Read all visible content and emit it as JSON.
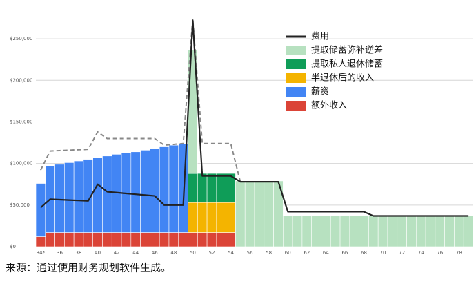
{
  "chart_data": {
    "type": "bar",
    "categories": [
      "34*",
      null,
      "36",
      null,
      "38",
      null,
      "40",
      null,
      "42",
      null,
      "44",
      null,
      "46",
      null,
      "48",
      null,
      "50",
      null,
      "52",
      null,
      "54",
      null,
      "56",
      null,
      "58",
      null,
      "60",
      null,
      "62",
      null,
      "64",
      null,
      "66",
      null,
      "68",
      null,
      "70",
      null,
      "72",
      null,
      "74",
      null,
      "76",
      null,
      "78",
      null
    ],
    "ylim": [
      0,
      275000
    ],
    "yticks": [
      {
        "value": 0,
        "label": "$0"
      },
      {
        "value": 50000,
        "label": "$50,000"
      },
      {
        "value": 100000,
        "label": "$100,000"
      },
      {
        "value": 150000,
        "label": "$150,000"
      },
      {
        "value": 200000,
        "label": "$200,000"
      },
      {
        "value": 250000,
        "label": "$250,000"
      }
    ],
    "grid": true,
    "legend": "top-right",
    "note": "来源：通过使用财务规划软件生成。",
    "series": [
      {
        "name": "费用",
        "type": "line",
        "color": "#222222",
        "values": [
          47000,
          57000,
          56500,
          56000,
          55500,
          55000,
          75000,
          66000,
          65000,
          64000,
          63000,
          62000,
          61000,
          50000,
          50000,
          50000,
          272000,
          85000,
          85000,
          85000,
          85000,
          78000,
          78000,
          78000,
          78000,
          78000,
          42000,
          42000,
          42000,
          42000,
          42000,
          42000,
          42000,
          42000,
          42000,
          37000,
          37000,
          37000,
          37000,
          37000,
          37000,
          37000,
          37000,
          37000,
          37000,
          37000
        ]
      },
      {
        "name": "提取储蓄弥补逆差",
        "type": "bar",
        "color": "#b7e1c0",
        "values": [
          null,
          null,
          null,
          null,
          null,
          null,
          null,
          null,
          null,
          null,
          null,
          null,
          null,
          null,
          null,
          null,
          149000,
          null,
          null,
          null,
          null,
          79000,
          79000,
          79000,
          79000,
          79000,
          37000,
          37000,
          37000,
          37000,
          37000,
          37000,
          37000,
          37000,
          37000,
          37000,
          37000,
          37000,
          37000,
          37000,
          37000,
          37000,
          37000,
          37000,
          37000,
          37000
        ]
      },
      {
        "name": "提取私人退休储蓄",
        "type": "bar",
        "color": "#0f9d58",
        "values": [
          null,
          null,
          null,
          null,
          null,
          null,
          null,
          null,
          null,
          null,
          null,
          null,
          null,
          null,
          null,
          null,
          35000,
          35000,
          35000,
          35000,
          35000,
          null,
          null,
          null,
          null,
          null,
          null,
          null,
          null,
          null,
          null,
          null,
          null,
          null,
          null,
          null,
          null,
          null,
          null,
          null,
          null,
          null,
          null,
          null,
          null,
          null
        ]
      },
      {
        "name": "半退休后的收入",
        "type": "bar",
        "color": "#f4b400",
        "values": [
          null,
          null,
          null,
          null,
          null,
          null,
          null,
          null,
          null,
          null,
          null,
          null,
          null,
          null,
          null,
          null,
          36000,
          36000,
          36000,
          36000,
          36000,
          null,
          null,
          null,
          null,
          null,
          null,
          null,
          null,
          null,
          null,
          null,
          null,
          null,
          null,
          null,
          null,
          null,
          null,
          null,
          null,
          null,
          null,
          null,
          null,
          null
        ]
      },
      {
        "name": "薪资",
        "type": "bar",
        "color": "#4285f4",
        "values": [
          64000,
          80000,
          82000,
          84000,
          86000,
          88000,
          90000,
          92000,
          94000,
          96000,
          97000,
          99000,
          101000,
          103000,
          105000,
          107000,
          null,
          null,
          null,
          null,
          null,
          null,
          null,
          null,
          null,
          null,
          null,
          null,
          null,
          null,
          null,
          null,
          null,
          null,
          null,
          null,
          null,
          null,
          null,
          null,
          null,
          null,
          null,
          null,
          null,
          null
        ]
      },
      {
        "name": "额外收入",
        "type": "bar",
        "color": "#db4437",
        "values": [
          12000,
          17000,
          17000,
          17000,
          17000,
          17000,
          17000,
          17000,
          17000,
          17000,
          17000,
          17000,
          17000,
          17000,
          17000,
          17000,
          17000,
          17000,
          17000,
          17000,
          17000,
          null,
          null,
          null,
          null,
          null,
          null,
          null,
          null,
          null,
          null,
          null,
          null,
          null,
          null,
          null,
          null,
          null,
          null,
          null,
          null,
          null,
          null,
          null,
          null,
          null
        ]
      },
      {
        "type": "line",
        "color": "#888888",
        "dash": true,
        "values": [
          92000,
          115000,
          115500,
          116000,
          116500,
          117000,
          138000,
          130000,
          130000,
          130000,
          130000,
          130000,
          130000,
          122000,
          123000,
          124000,
          274000,
          124000,
          124000,
          124000,
          124000,
          78000,
          null,
          null,
          null,
          null,
          null,
          null,
          null,
          null,
          null,
          null,
          null,
          null,
          null,
          null,
          null,
          null,
          null,
          null,
          null,
          null,
          null,
          null,
          null,
          null
        ]
      }
    ]
  }
}
